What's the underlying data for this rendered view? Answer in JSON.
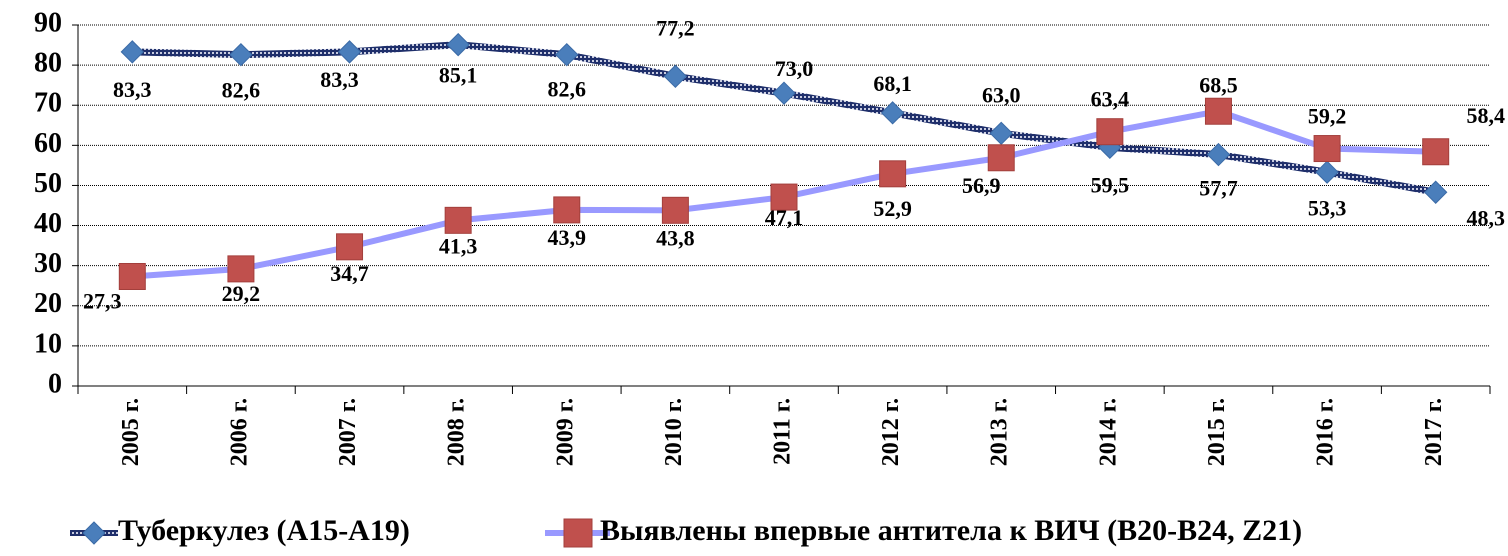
{
  "chart_data": {
    "type": "line",
    "categories": [
      "2005 г.",
      "2006 г.",
      "2007 г.",
      "2008 г.",
      "2009 г.",
      "2010 г.",
      "2011 г.",
      "2012 г.",
      "2013 г.",
      "2014 г.",
      "2015 г.",
      "2016 г.",
      "2017 г."
    ],
    "series": [
      {
        "name": "Туберкулез (А15-А19)",
        "color": "#4a7ebb",
        "line_color": "#1f2f6b",
        "values": [
          83.3,
          82.6,
          83.3,
          85.1,
          82.6,
          77.2,
          73.0,
          68.1,
          63.0,
          59.5,
          57.7,
          53.3,
          48.3
        ],
        "value_labels": [
          "83,3",
          "82,6",
          "83,3",
          "85,1",
          "82,6",
          "77,2",
          "73,0",
          "68,1",
          "63,0",
          "59,5",
          "57,7",
          "53,3",
          "48,3"
        ]
      },
      {
        "name": "Выявлены впервые антитела к ВИЧ (В20-В24, Z21)",
        "color": "#c0504d",
        "line_color": "#9999ff",
        "values": [
          27.3,
          29.2,
          34.7,
          41.3,
          43.9,
          43.8,
          47.1,
          52.9,
          56.9,
          63.4,
          68.5,
          59.2,
          58.4
        ],
        "value_labels": [
          "27,3",
          "29,2",
          "34,7",
          "41,3",
          "43,9",
          "43,8",
          "47,1",
          "52,9",
          "56,9",
          "63,4",
          "68,5",
          "59,2",
          "58,4"
        ]
      }
    ],
    "ylim": [
      0,
      90
    ],
    "yticks": [
      0,
      10,
      20,
      30,
      40,
      50,
      60,
      70,
      80,
      90
    ],
    "grid": true,
    "legend": "bottom"
  }
}
